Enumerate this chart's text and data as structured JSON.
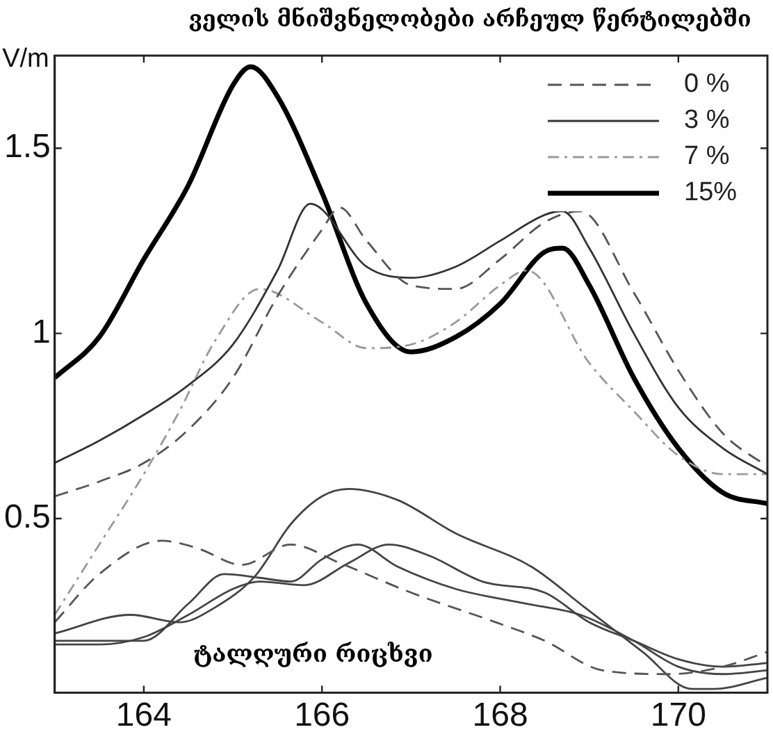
{
  "chart_data": {
    "type": "line",
    "title": "ველის მნიშვნელობები არჩეულ წერტილებში",
    "xlabel": "ტალღური რიცხვი",
    "ylabel": "V/m",
    "xlim": [
      163,
      171
    ],
    "ylim": [
      0.03,
      1.75
    ],
    "xticks": [
      164,
      166,
      168,
      170
    ],
    "yticks": [
      0.5,
      1,
      1.5
    ],
    "grid": false,
    "legend": "top right",
    "marker": "none",
    "series": [
      {
        "name": "0 %",
        "color": "#555555",
        "line_style": "dashed",
        "x": [
          163,
          163.5,
          164,
          164.5,
          165,
          165.5,
          166,
          166.2,
          166.5,
          167,
          167.5,
          168,
          168.5,
          168.9,
          169.5,
          170,
          170.5,
          171
        ],
        "values": [
          0.56,
          0.6,
          0.65,
          0.74,
          0.88,
          1.1,
          1.28,
          1.34,
          1.25,
          1.13,
          1.12,
          1.2,
          1.3,
          1.33,
          1.11,
          0.9,
          0.73,
          0.64
        ]
      },
      {
        "name": "3 %",
        "color": "#333333",
        "line_style": "solid",
        "x": [
          163,
          163.5,
          164,
          164.5,
          165,
          165.5,
          165.87,
          166.5,
          167,
          167.5,
          168,
          168.5,
          168.7,
          169,
          169.5,
          170,
          170.5,
          171
        ],
        "values": [
          0.65,
          0.71,
          0.78,
          0.86,
          0.97,
          1.17,
          1.35,
          1.18,
          1.15,
          1.18,
          1.25,
          1.32,
          1.33,
          1.23,
          1.0,
          0.8,
          0.69,
          0.62
        ]
      },
      {
        "name": "7 %",
        "color": "#999999",
        "line_style": "dashdot",
        "x": [
          163,
          163.5,
          164,
          164.4,
          164.8,
          165.3,
          166,
          166.5,
          167,
          167.5,
          168,
          168.3,
          169,
          169.5,
          170,
          170.5,
          171
        ],
        "values": [
          0.24,
          0.43,
          0.62,
          0.79,
          0.98,
          1.12,
          1.03,
          0.96,
          0.97,
          1.03,
          1.13,
          1.17,
          0.92,
          0.79,
          0.67,
          0.62,
          0.62
        ]
      },
      {
        "name": "15%",
        "color": "#000000",
        "line_style": "solid",
        "x": [
          163,
          163.5,
          164,
          164.5,
          165,
          165.2,
          165.5,
          166,
          166.5,
          167,
          167.5,
          168,
          168.5,
          168.7,
          169,
          169.5,
          170,
          170.5,
          171
        ],
        "values": [
          0.88,
          0.99,
          1.2,
          1.4,
          1.67,
          1.72,
          1.64,
          1.38,
          1.08,
          0.95,
          0.99,
          1.08,
          1.22,
          1.23,
          1.13,
          0.88,
          0.69,
          0.57,
          0.54
        ]
      },
      {
        "color": "#555555",
        "line_style": "dashed",
        "x": [
          163,
          163.5,
          164.2,
          164.6,
          165.1,
          165.65,
          166.2,
          167,
          167.95,
          168.5,
          169.15,
          169.9,
          170.5,
          171
        ],
        "values": [
          0.22,
          0.35,
          0.44,
          0.42,
          0.375,
          0.43,
          0.38,
          0.3,
          0.22,
          0.17,
          0.09,
          0.08,
          0.1,
          0.14
        ]
      },
      {
        "color": "#444444",
        "line_style": "solid",
        "x": [
          163,
          163.85,
          164.4,
          164.8,
          165.25,
          165.65,
          166,
          166.3,
          166.85,
          167.5,
          168.35,
          168.95,
          169.6,
          170.15,
          170.4,
          171
        ],
        "values": [
          0.19,
          0.24,
          0.22,
          0.26,
          0.345,
          0.485,
          0.56,
          0.58,
          0.55,
          0.46,
          0.37,
          0.26,
          0.14,
          0.04,
          0.04,
          0.07
        ]
      },
      {
        "color": "#444444",
        "line_style": "solid",
        "x": [
          163,
          163.5,
          164,
          164.5,
          164.9,
          165.3,
          165.65,
          166,
          166.4,
          166.85,
          167.5,
          168.3,
          168.9,
          169.5,
          170,
          170.5,
          171
        ],
        "values": [
          0.17,
          0.17,
          0.17,
          0.27,
          0.35,
          0.34,
          0.33,
          0.39,
          0.43,
          0.37,
          0.31,
          0.27,
          0.24,
          0.17,
          0.1,
          0.08,
          0.09
        ]
      },
      {
        "color": "#444444",
        "line_style": "solid",
        "x": [
          163,
          163.5,
          164,
          164.5,
          165,
          165.3,
          165.8,
          166.3,
          166.75,
          167.2,
          167.8,
          168.5,
          169,
          169.5,
          170,
          170.5,
          171
        ],
        "values": [
          0.16,
          0.16,
          0.18,
          0.24,
          0.31,
          0.33,
          0.32,
          0.38,
          0.43,
          0.4,
          0.33,
          0.3,
          0.22,
          0.17,
          0.12,
          0.1,
          0.11
        ]
      }
    ]
  }
}
